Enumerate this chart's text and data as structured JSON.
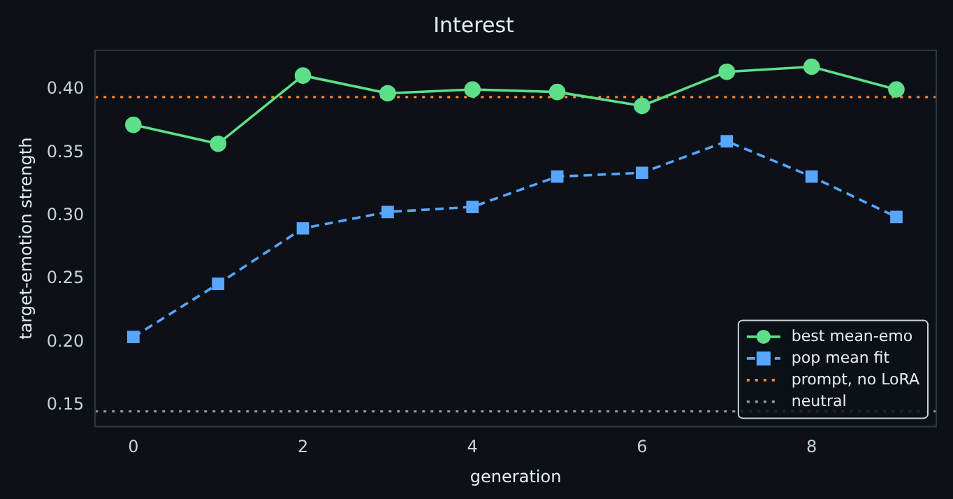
{
  "chart_data": {
    "type": "line",
    "title": "Interest",
    "xlabel": "generation",
    "ylabel": "target-emotion strength",
    "x": [
      0,
      1,
      2,
      3,
      4,
      5,
      6,
      7,
      8,
      9
    ],
    "series": [
      {
        "name": "best mean-emo",
        "color": "#5ddf8a",
        "marker": "circle",
        "line_style": "solid",
        "values": [
          0.372,
          0.357,
          0.411,
          0.397,
          0.4,
          0.398,
          0.387,
          0.414,
          0.418,
          0.4
        ]
      },
      {
        "name": "pop mean fit",
        "color": "#58a6ff",
        "marker": "square",
        "line_style": "dashed",
        "values": [
          0.204,
          0.246,
          0.29,
          0.303,
          0.307,
          0.331,
          0.334,
          0.359,
          0.331,
          0.299
        ]
      }
    ],
    "ref_lines": [
      {
        "axis": "y",
        "value": 0.394,
        "label": "prompt, no LoRA",
        "color": "#f0883e",
        "line_style": "dotted"
      },
      {
        "axis": "y",
        "value": 0.145,
        "label": "neutral",
        "color": "#8b949e",
        "line_style": "dotted"
      }
    ],
    "xlim": [
      -0.45,
      9.47
    ],
    "xticks": [
      0,
      2,
      4,
      6,
      8
    ],
    "ylim": [
      0.133,
      0.431
    ],
    "yticks": [
      0.15,
      {
        "value": 0.2,
        "label": "0.20"
      },
      0.25,
      {
        "value": 0.3,
        "label": "0.30"
      },
      0.35,
      {
        "value": 0.4,
        "label": "0.40"
      }
    ],
    "grid": false,
    "legend": "bottom right"
  }
}
